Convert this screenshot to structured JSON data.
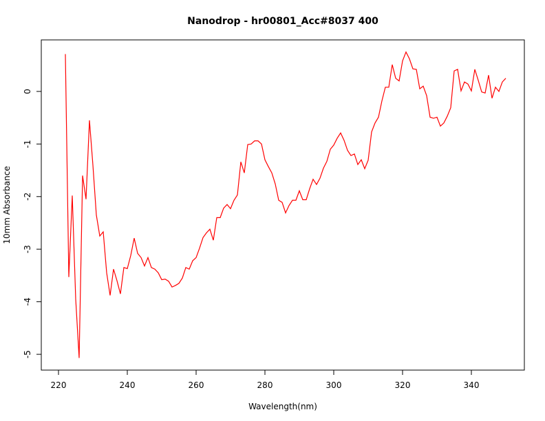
{
  "chart_data": {
    "type": "line",
    "title": "Nanodrop - hr00801_Acc#8037 400",
    "x_label": "Wavelength(nm)",
    "y_label": "10mm Absorbance",
    "color": "#ff0000",
    "x": [
      222,
      223,
      224,
      225,
      226,
      227,
      228,
      229,
      230,
      231,
      232,
      233,
      234,
      235,
      236,
      237,
      238,
      239,
      240,
      241,
      242,
      243,
      244,
      245,
      246,
      247,
      248,
      249,
      250,
      251,
      252,
      253,
      254,
      255,
      256,
      257,
      258,
      259,
      260,
      261,
      262,
      263,
      264,
      265,
      266,
      267,
      268,
      269,
      270,
      271,
      272,
      273,
      274,
      275,
      276,
      277,
      278,
      279,
      280,
      281,
      282,
      283,
      284,
      285,
      286,
      287,
      288,
      289,
      290,
      291,
      292,
      293,
      294,
      295,
      296,
      297,
      298,
      299,
      300,
      301,
      302,
      303,
      304,
      305,
      306,
      307,
      308,
      309,
      310,
      311,
      312,
      313,
      314,
      315,
      316,
      317,
      318,
      319,
      320,
      321,
      322,
      323,
      324,
      325,
      326,
      327,
      328,
      329,
      330,
      331,
      332,
      333,
      334,
      335,
      336,
      337,
      338,
      339,
      340,
      341,
      342,
      343,
      344,
      345,
      346,
      347,
      348,
      349,
      350
    ],
    "values": [
      0.71,
      -3.53,
      -1.98,
      -3.95,
      -5.07,
      -1.6,
      -2.05,
      -0.55,
      -1.4,
      -2.35,
      -2.75,
      -2.67,
      -3.45,
      -3.88,
      -3.38,
      -3.6,
      -3.85,
      -3.35,
      -3.37,
      -3.12,
      -2.79,
      -3.08,
      -3.16,
      -3.32,
      -3.16,
      -3.35,
      -3.38,
      -3.45,
      -3.58,
      -3.57,
      -3.61,
      -3.72,
      -3.69,
      -3.65,
      -3.55,
      -3.35,
      -3.38,
      -3.22,
      -3.16,
      -2.98,
      -2.78,
      -2.69,
      -2.62,
      -2.83,
      -2.4,
      -2.4,
      -2.22,
      -2.15,
      -2.23,
      -2.07,
      -1.97,
      -1.34,
      -1.55,
      -1.01,
      -1.0,
      -0.94,
      -0.94,
      -1.0,
      -1.3,
      -1.43,
      -1.55,
      -1.76,
      -2.07,
      -2.11,
      -2.31,
      -2.17,
      -2.07,
      -2.07,
      -1.89,
      -2.06,
      -2.06,
      -1.85,
      -1.67,
      -1.77,
      -1.65,
      -1.46,
      -1.33,
      -1.1,
      -1.02,
      -0.89,
      -0.79,
      -0.93,
      -1.12,
      -1.22,
      -1.19,
      -1.39,
      -1.3,
      -1.47,
      -1.31,
      -0.77,
      -0.6,
      -0.49,
      -0.18,
      0.08,
      0.08,
      0.51,
      0.25,
      0.2,
      0.58,
      0.75,
      0.62,
      0.43,
      0.42,
      0.05,
      0.1,
      -0.08,
      -0.49,
      -0.51,
      -0.49,
      -0.66,
      -0.6,
      -0.47,
      -0.31,
      0.39,
      0.42,
      0.01,
      0.18,
      0.14,
      0.01,
      0.42,
      0.21,
      -0.01,
      -0.03,
      0.31,
      -0.13,
      0.08,
      0,
      0.18,
      0.25
    ],
    "xlim": [
      215,
      355.4
    ],
    "ylim": [
      -5.3,
      0.98
    ],
    "xticks": [
      220,
      240,
      260,
      280,
      300,
      320,
      340
    ],
    "yticks": [
      -5,
      -4,
      -3,
      -2,
      -1,
      0
    ]
  }
}
